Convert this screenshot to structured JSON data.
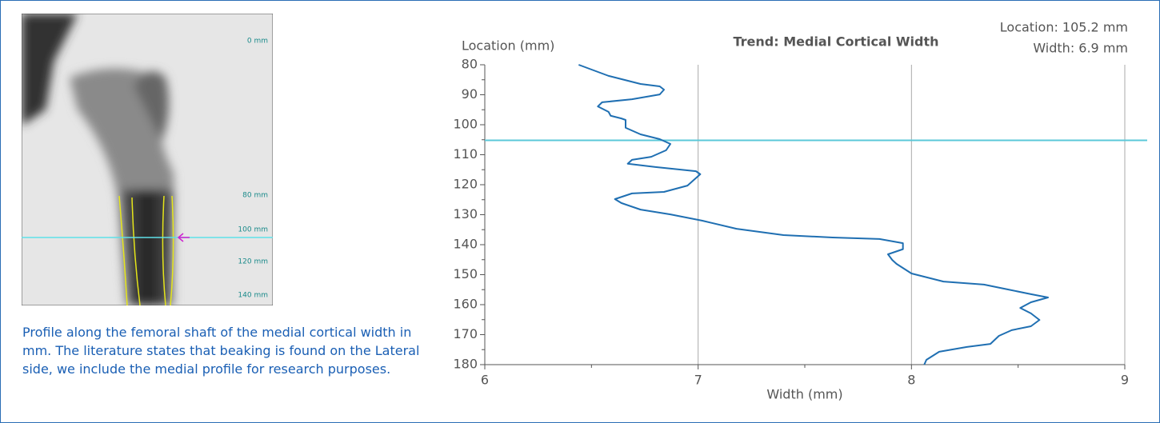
{
  "image": {
    "scale_labels": [
      "0 mm",
      "80 mm",
      "100 mm",
      "120 mm",
      "140 mm"
    ]
  },
  "caption": "Profile along the femoral shaft of the medial cortical width in mm. The literature states that beaking is found on the Lateral side, we include the medial profile for research purposes.",
  "chart_data": {
    "type": "line",
    "title": "Trend: Medial Cortical Width",
    "x_label": "Width (mm)",
    "y_label": "Location (mm)",
    "xlim": [
      6,
      9
    ],
    "xticks": [
      6,
      7,
      8,
      9
    ],
    "x_minor_ticks": [
      6.5,
      7.5,
      8.5
    ],
    "ylim": [
      80,
      180
    ],
    "yticks": [
      80,
      90,
      100,
      110,
      120,
      130,
      140,
      150,
      160,
      170,
      180
    ],
    "y_minor_ticks": [
      85,
      95,
      105,
      115,
      125,
      135,
      145,
      155,
      165,
      175
    ],
    "y_inverted": true,
    "grid": true,
    "color": "#1f6fb2",
    "cursor": {
      "location": 105.2,
      "color": "#5bc8d8",
      "location_label": "Location: 105.2 mm",
      "width_label": "Width: 6.9 mm"
    },
    "series": [
      {
        "color": "#1f6fb2",
        "x": [
          6.44,
          6.58,
          6.73,
          6.82,
          6.84,
          6.82,
          6.69,
          6.55,
          6.53,
          6.58,
          6.59,
          6.64,
          6.66,
          6.66,
          6.73,
          6.82,
          6.87,
          6.85,
          6.78,
          6.69,
          6.67,
          6.8,
          6.99,
          7.01,
          6.95,
          6.84,
          6.69,
          6.61,
          6.64,
          6.73,
          6.87,
          7.02,
          7.18,
          7.4,
          7.63,
          7.85,
          7.96,
          7.96,
          7.89,
          7.91,
          7.93,
          8.0,
          8.15,
          8.34,
          8.45,
          8.56,
          8.64,
          8.56,
          8.51,
          8.56,
          8.6,
          8.56,
          8.47,
          8.41,
          8.37,
          8.26,
          8.13,
          8.07,
          8.06
        ],
        "y": [
          80,
          83.7,
          86.4,
          87.2,
          88.3,
          89.9,
          91.5,
          92.5,
          93.9,
          95.7,
          97,
          97.9,
          98.4,
          101,
          103.2,
          104.8,
          106.4,
          108.5,
          110.7,
          111.7,
          113,
          114.1,
          115.5,
          116.5,
          120.3,
          122.4,
          122.9,
          124.8,
          126.1,
          128.3,
          129.9,
          132,
          134.7,
          136.8,
          137.6,
          138.1,
          139.5,
          141.5,
          143.2,
          145.1,
          146.4,
          149.6,
          152.3,
          153.3,
          154.9,
          156.5,
          157.6,
          159.2,
          161.1,
          162.9,
          165.1,
          167.2,
          168.5,
          170.4,
          173.1,
          174.1,
          175.7,
          178.4,
          180
        ]
      }
    ]
  }
}
